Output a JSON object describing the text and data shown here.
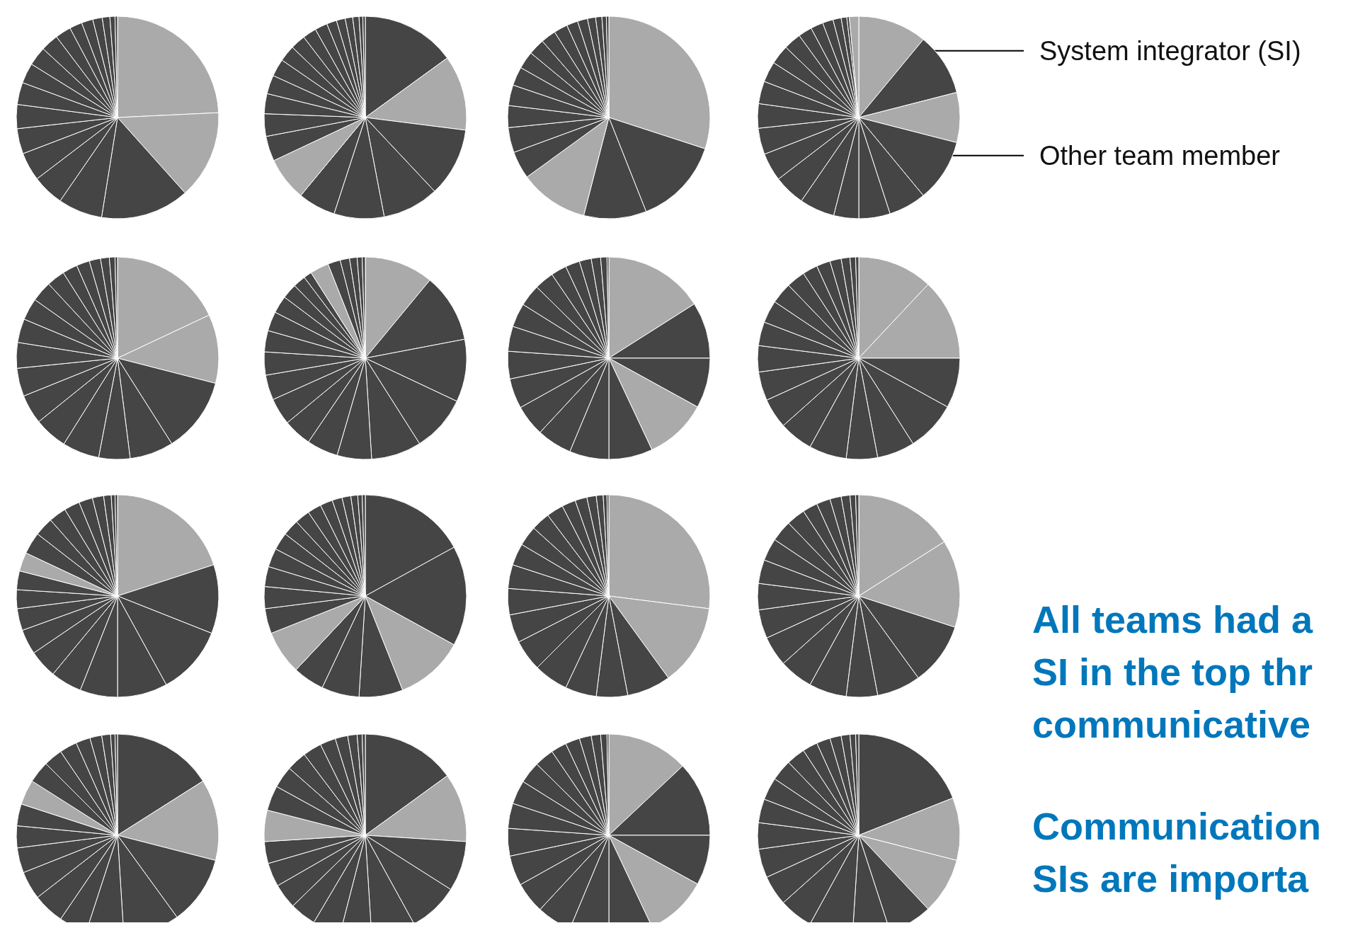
{
  "chart_data": [
    {
      "type": "pie",
      "values": [
        24,
        14,
        14,
        7,
        5,
        4.5,
        4,
        3.8,
        3.5,
        3.2,
        3,
        2.8,
        2.5,
        2,
        1.8,
        1.5,
        1.2,
        0.8,
        0.4
      ],
      "colors": [
        "#aaaaaa",
        "#aaaaaa",
        "#454545",
        "#454545",
        "#454545",
        "#454545",
        "#454545",
        "#454545",
        "#454545",
        "#454545",
        "#454545",
        "#454545",
        "#454545",
        "#454545",
        "#454545",
        "#454545",
        "#454545",
        "#454545",
        "#454545"
      ]
    },
    {
      "type": "pie",
      "values": [
        15,
        12,
        11,
        9,
        8,
        6,
        7,
        4,
        3.6,
        3.2,
        3,
        2.8,
        2.6,
        2.4,
        2.2,
        2,
        1.6,
        1.4,
        1.2,
        1,
        0.6,
        0.4
      ],
      "colors": [
        "#454545",
        "#aaaaaa",
        "#454545",
        "#454545",
        "#454545",
        "#454545",
        "#aaaaaa",
        "#454545",
        "#454545",
        "#454545",
        "#454545",
        "#454545",
        "#454545",
        "#454545",
        "#454545",
        "#454545",
        "#454545",
        "#454545",
        "#454545",
        "#454545",
        "#454545",
        "#454545"
      ]
    },
    {
      "type": "pie",
      "values": [
        30,
        14,
        10,
        11,
        4.4,
        4,
        3.5,
        3.3,
        3,
        2.8,
        2.6,
        2.4,
        2.2,
        1.8,
        1.6,
        1.3,
        1,
        0.7,
        0.4
      ],
      "colors": [
        "#aaaaaa",
        "#454545",
        "#454545",
        "#aaaaaa",
        "#454545",
        "#454545",
        "#454545",
        "#454545",
        "#454545",
        "#454545",
        "#454545",
        "#454545",
        "#454545",
        "#454545",
        "#454545",
        "#454545",
        "#454545",
        "#454545",
        "#454545"
      ]
    },
    {
      "type": "pie",
      "categories": [
        "System integrator (SI)",
        null,
        null,
        "Other team member",
        null,
        null,
        null,
        null,
        null,
        null,
        null,
        null,
        null,
        null,
        null,
        null,
        null,
        null,
        null,
        null,
        null,
        null,
        null
      ],
      "values": [
        11,
        10,
        8,
        10,
        6,
        5,
        4,
        5.6,
        5,
        4.5,
        4.2,
        3.9,
        3.6,
        3.3,
        3.1,
        2.8,
        2.2,
        2,
        1.7,
        1.3,
        0.9,
        0.4,
        1.5
      ],
      "colors": [
        "#aaaaaa",
        "#454545",
        "#aaaaaa",
        "#454545",
        "#454545",
        "#454545",
        "#454545",
        "#454545",
        "#454545",
        "#454545",
        "#454545",
        "#454545",
        "#454545",
        "#454545",
        "#454545",
        "#454545",
        "#454545",
        "#454545",
        "#454545",
        "#454545",
        "#454545",
        "#454545",
        "#aaaaaa"
      ]
    },
    {
      "type": "pie",
      "values": [
        18,
        11,
        12,
        7,
        5,
        5.9,
        5.3,
        4.7,
        4.5,
        4.1,
        3.8,
        3.5,
        3.3,
        2.9,
        2.4,
        2.1,
        1.8,
        1.4,
        0.9,
        0.4
      ],
      "colors": [
        "#aaaaaa",
        "#aaaaaa",
        "#454545",
        "#454545",
        "#454545",
        "#454545",
        "#454545",
        "#454545",
        "#454545",
        "#454545",
        "#454545",
        "#454545",
        "#454545",
        "#454545",
        "#454545",
        "#454545",
        "#454545",
        "#454545",
        "#454545",
        "#454545"
      ]
    },
    {
      "type": "pie",
      "values": [
        11,
        11,
        10,
        9,
        8,
        5.5,
        5,
        4.5,
        4.3,
        4,
        3.7,
        3.4,
        3.1,
        2.8,
        2.4,
        2,
        1.3,
        3,
        2,
        1.5,
        1.2,
        0.8,
        0.5
      ],
      "colors": [
        "#aaaaaa",
        "#454545",
        "#454545",
        "#454545",
        "#454545",
        "#454545",
        "#454545",
        "#454545",
        "#454545",
        "#454545",
        "#454545",
        "#454545",
        "#454545",
        "#454545",
        "#454545",
        "#454545",
        "#454545",
        "#aaaaaa",
        "#454545",
        "#454545",
        "#454545",
        "#454545",
        "#454545"
      ]
    },
    {
      "type": "pie",
      "values": [
        16,
        9,
        8,
        10,
        7,
        6.3,
        5.6,
        5,
        4.8,
        4.4,
        4,
        3.8,
        3.5,
        3.1,
        2.5,
        2.3,
        1.9,
        1.5,
        1,
        0.3
      ],
      "colors": [
        "#aaaaaa",
        "#454545",
        "#454545",
        "#aaaaaa",
        "#454545",
        "#454545",
        "#454545",
        "#454545",
        "#454545",
        "#454545",
        "#454545",
        "#454545",
        "#454545",
        "#454545",
        "#454545",
        "#454545",
        "#454545",
        "#454545",
        "#454545",
        "#454545"
      ]
    },
    {
      "type": "pie",
      "values": [
        12,
        13,
        8,
        8,
        6,
        5,
        6,
        5.4,
        4.8,
        4.6,
        4.2,
        3.8,
        3.6,
        3.4,
        3,
        2.4,
        2.2,
        1.8,
        1.4,
        0.9,
        0.5
      ],
      "colors": [
        "#aaaaaa",
        "#aaaaaa",
        "#454545",
        "#454545",
        "#454545",
        "#454545",
        "#454545",
        "#454545",
        "#454545",
        "#454545",
        "#454545",
        "#454545",
        "#454545",
        "#454545",
        "#454545",
        "#454545",
        "#454545",
        "#454545",
        "#454545",
        "#454545",
        "#454545"
      ]
    },
    {
      "type": "pie",
      "values": [
        20,
        11,
        11,
        8,
        6,
        5,
        4.5,
        4,
        3.5,
        3,
        3,
        3,
        3.5,
        3,
        2.8,
        2.5,
        2.2,
        1.8,
        1.2,
        0.6,
        0.4
      ],
      "colors": [
        "#aaaaaa",
        "#454545",
        "#454545",
        "#454545",
        "#454545",
        "#454545",
        "#454545",
        "#454545",
        "#454545",
        "#454545",
        "#454545",
        "#aaaaaa",
        "#454545",
        "#454545",
        "#454545",
        "#454545",
        "#454545",
        "#454545",
        "#454545",
        "#454545",
        "#454545"
      ]
    },
    {
      "type": "pie",
      "values": [
        17,
        16,
        11,
        7,
        6,
        5,
        7,
        4,
        3.5,
        3.2,
        3,
        2.8,
        2.6,
        2.4,
        2.2,
        2,
        1.6,
        1.4,
        1.1,
        0.7,
        0.5
      ],
      "colors": [
        "#454545",
        "#454545",
        "#aaaaaa",
        "#454545",
        "#454545",
        "#454545",
        "#aaaaaa",
        "#454545",
        "#454545",
        "#454545",
        "#454545",
        "#454545",
        "#454545",
        "#454545",
        "#454545",
        "#454545",
        "#454545",
        "#454545",
        "#454545",
        "#454545",
        "#454545"
      ]
    },
    {
      "type": "pie",
      "values": [
        27,
        13,
        7,
        5,
        5,
        5.5,
        5,
        4.5,
        4.2,
        3.8,
        3.5,
        3.2,
        3,
        2.7,
        2.2,
        1.9,
        1.5,
        1.1,
        0.6,
        0.3
      ],
      "colors": [
        "#aaaaaa",
        "#aaaaaa",
        "#454545",
        "#454545",
        "#454545",
        "#454545",
        "#454545",
        "#454545",
        "#454545",
        "#454545",
        "#454545",
        "#454545",
        "#454545",
        "#454545",
        "#454545",
        "#454545",
        "#454545",
        "#454545",
        "#454545",
        "#454545"
      ]
    },
    {
      "type": "pie",
      "values": [
        16,
        14,
        10,
        7,
        5,
        6,
        5.4,
        4.8,
        4.6,
        4.2,
        3.8,
        3.6,
        3.4,
        3,
        2.4,
        2.2,
        1.8,
        1.4,
        0.9,
        0.5
      ],
      "colors": [
        "#aaaaaa",
        "#aaaaaa",
        "#454545",
        "#454545",
        "#454545",
        "#454545",
        "#454545",
        "#454545",
        "#454545",
        "#454545",
        "#454545",
        "#454545",
        "#454545",
        "#454545",
        "#454545",
        "#454545",
        "#454545",
        "#454545",
        "#454545",
        "#454545"
      ]
    },
    {
      "type": "pie",
      "values": [
        16,
        13,
        11,
        9,
        6,
        4.5,
        5,
        4.5,
        4,
        3.5,
        3.5,
        4,
        3.5,
        3,
        2.8,
        2.3,
        1.9,
        1.4,
        0.7,
        0.4
      ],
      "colors": [
        "#454545",
        "#aaaaaa",
        "#454545",
        "#454545",
        "#454545",
        "#454545",
        "#454545",
        "#454545",
        "#454545",
        "#454545",
        "#454545",
        "#aaaaaa",
        "#454545",
        "#454545",
        "#454545",
        "#454545",
        "#454545",
        "#454545",
        "#454545",
        "#454545"
      ]
    },
    {
      "type": "pie",
      "values": [
        15,
        11,
        8,
        8,
        7,
        5,
        4.5,
        4.2,
        4,
        3.8,
        3.5,
        5,
        4,
        3.5,
        3.2,
        3,
        2.5,
        2,
        1.5,
        0.8,
        0.5
      ],
      "colors": [
        "#454545",
        "#aaaaaa",
        "#454545",
        "#454545",
        "#454545",
        "#454545",
        "#454545",
        "#454545",
        "#454545",
        "#454545",
        "#454545",
        "#aaaaaa",
        "#454545",
        "#454545",
        "#454545",
        "#454545",
        "#454545",
        "#454545",
        "#454545",
        "#454545",
        "#454545"
      ]
    },
    {
      "type": "pie",
      "values": [
        13,
        12,
        8,
        10,
        7,
        6.3,
        5.6,
        5,
        4.8,
        4.4,
        4,
        3.8,
        3.5,
        3.1,
        2.5,
        2.3,
        1.9,
        1.5,
        1,
        0.3
      ],
      "colors": [
        "#aaaaaa",
        "#454545",
        "#454545",
        "#aaaaaa",
        "#454545",
        "#454545",
        "#454545",
        "#454545",
        "#454545",
        "#454545",
        "#454545",
        "#454545",
        "#454545",
        "#454545",
        "#454545",
        "#454545",
        "#454545",
        "#454545",
        "#454545",
        "#454545"
      ]
    },
    {
      "type": "pie",
      "values": [
        19,
        10,
        9,
        7,
        6,
        7,
        5.4,
        4.8,
        4.6,
        4.2,
        3.8,
        3.6,
        3.4,
        3,
        2.4,
        2.2,
        1.8,
        1.4,
        0.9,
        0.5
      ],
      "colors": [
        "#454545",
        "#aaaaaa",
        "#aaaaaa",
        "#454545",
        "#454545",
        "#454545",
        "#454545",
        "#454545",
        "#454545",
        "#454545",
        "#454545",
        "#454545",
        "#454545",
        "#454545",
        "#454545",
        "#454545",
        "#454545",
        "#454545",
        "#454545",
        "#454545"
      ]
    },
    {
      "type": "other",
      "annotations": [
        "All teams had a\nSI in the top thr\ncommunicative",
        "Communication\nSIs are importa"
      ]
    }
  ]
}
